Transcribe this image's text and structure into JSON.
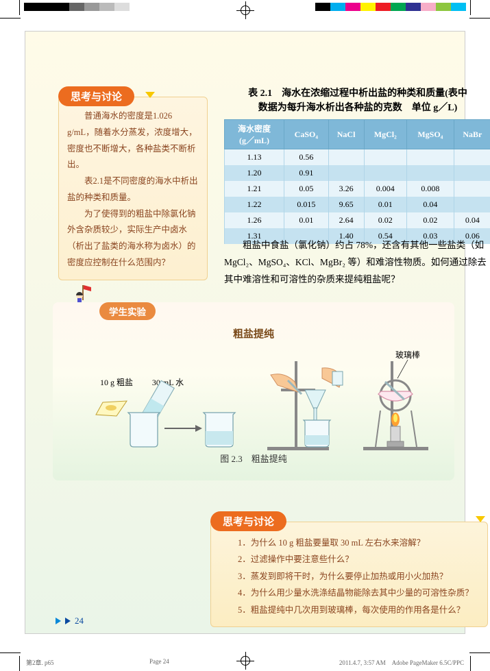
{
  "colorbar_left": [
    "#000000",
    "#000000",
    "#000000",
    "#666666",
    "#999999",
    "#bbbbbb",
    "#dddddd",
    "#ffffff"
  ],
  "colorbar_right": [
    "#000000",
    "#00aeef",
    "#ec008c",
    "#fff200",
    "#ed1c24",
    "#00a651",
    "#2e3192",
    "#f7adc8",
    "#8dc63f",
    "#00bff3"
  ],
  "sidebar": {
    "header": "思考与讨论",
    "body": "普通海水的密度是1.026 g/mL，随着水分蒸发，浓度增大，密度也不断增大，各种盐类不断析出。\n　　表2.1是不同密度的海水中析出盐的种类和质量。\n　　为了使得到的粗盐中除氯化钠外含杂质较少，实际生产中卤水（析出了盐类的海水称为卤水）的密度应控制在什么范围内？"
  },
  "table": {
    "title_line1": "表 2.1　海水在浓缩过程中析出盐的种类和质量(表中",
    "title_line2": "数据为每升海水析出各种盐的克数　单位 g／L)",
    "head_col0_line1": "海水密度",
    "head_col0_line2": "(g／mL)",
    "columns": [
      "CaSO₄",
      "NaCl",
      "MgCl₂",
      "MgSO₄",
      "NaBr"
    ],
    "rows": [
      [
        "1.13",
        "0.56",
        "",
        "",
        "",
        ""
      ],
      [
        "1.20",
        "0.91",
        "",
        "",
        "",
        ""
      ],
      [
        "1.21",
        "0.05",
        "3.26",
        "0.004",
        "0.008",
        ""
      ],
      [
        "1.22",
        "0.015",
        "9.65",
        "0.01",
        "0.04",
        ""
      ],
      [
        "1.26",
        "0.01",
        "2.64",
        "0.02",
        "0.02",
        "0.04"
      ],
      [
        "1.31",
        "",
        "1.40",
        "0.54",
        "0.03",
        "0.06"
      ]
    ],
    "header_bg": "#7fb8d8",
    "row_odd_bg": "#e8f4fa",
    "row_even_bg": "#c5e2f0"
  },
  "body_text": "粗盐中食盐（氯化钠）约占 78%，还含有其他一些盐类（如 MgCl₂、MgSO₄、KCl、MgBr₂ 等）和难溶性物质。如何通过除去其中难溶性和可溶性的杂质来提纯粗盐呢？",
  "experiment": {
    "badge": "学生实验",
    "title": "粗盐提纯",
    "salt_label": "10 g 粗盐",
    "water_label": "30 mL 水",
    "rod_label": "玻璃棒",
    "caption": "图 2.3　粗盐提纯"
  },
  "discussion": {
    "header": "思考与讨论",
    "q1": "1．为什么 10 g 粗盐要量取 30 mL 左右水来溶解？",
    "q2": "2．过滤操作中要注意些什么？",
    "q3": "3．蒸发到即将干时，为什么要停止加热或用小火加热？",
    "q4": "4．为什么用少量水洗涤结晶物能除去其中少量的可溶性杂质？",
    "q5": "5．粗盐提纯中几次用到玻璃棒，每次使用的作用各是什么？"
  },
  "page_number": "24",
  "footer": {
    "left": "第2章. p65",
    "mid": "Page 24",
    "right": "2011.4.7, 3:57 AM　Adobe PageMaker 6.5C/PPC"
  }
}
